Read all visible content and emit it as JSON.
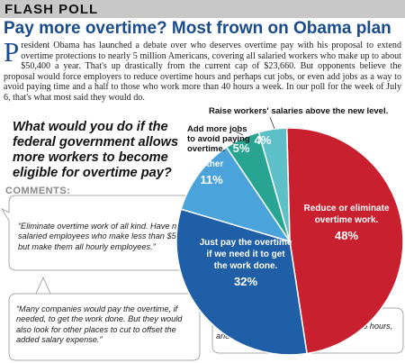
{
  "header": {
    "label": "FLASH POLL"
  },
  "headline": "Pay more overtime? Most frown on Obama plan",
  "article": {
    "dropcap": "P",
    "text": "resident Obama has launched a debate over who deserves overtime pay with his proposal to extend overtime protections to nearly 5 million Americans, covering all salaried workers who make up to about $50,400 a year. That's up drastically from the current cap of $23,660. But opponents believe the proposal would force employers to reduce overtime hours and perhaps cut jobs, or even add jobs as a way to avoid paying time and a half to those who work more than 40 hours a week. In our poll for the week of July 6, that's what most said they would do."
  },
  "question": "What would you do if the federal government allows more workers to become eligible for overtime pay?",
  "comments_label": "COMMENTS:",
  "comments": [
    "“Eliminate overtime work of all kind. Have no salaried employees who make less than $50,401, but make them all hourly employees.”",
    "“Many companies would pay the overtime, if needed, to get the work done. But they would also look for other places to cut to offset the added salary expense.”",
    "“I think it's fair to pay overtime for over 40 hours, and we have always done so.”"
  ],
  "chart_data": {
    "type": "pie",
    "slices": [
      {
        "label": "Reduce or eliminate overtime work.",
        "value": 48,
        "display": "48%",
        "color": "#c8202e"
      },
      {
        "label": "Just pay the overtime if we need it to get the work done.",
        "value": 32,
        "display": "32%",
        "color": "#1f5fa8"
      },
      {
        "label": "Other",
        "value": 11,
        "display": "11%",
        "color": "#4aa3db"
      },
      {
        "label": "Add more jobs to avoid paying overtime.",
        "value": 5,
        "display": "5%",
        "color": "#27a592"
      },
      {
        "label": "Raise workers' salaries above the new level.",
        "value": 4,
        "display": "4%",
        "color": "#5dc0c8"
      }
    ]
  }
}
